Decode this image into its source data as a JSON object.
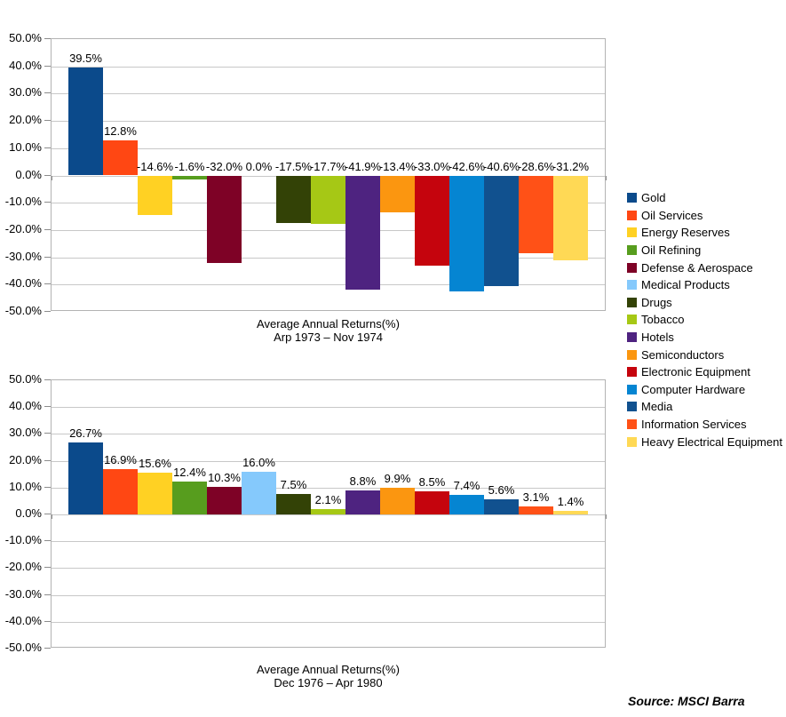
{
  "page": {
    "background": "#FFFFFF"
  },
  "legend": {
    "position": "right",
    "items": [
      {
        "label": "Gold",
        "color": "#0B4A8B"
      },
      {
        "label": "Oil Services",
        "color": "#FF4713"
      },
      {
        "label": "Energy Reserves",
        "color": "#FFD123"
      },
      {
        "label": "Oil Refining",
        "color": "#579D1E"
      },
      {
        "label": "Defense & Aerospace",
        "color": "#7E0226"
      },
      {
        "label": "Medical Products",
        "color": "#85C9FC"
      },
      {
        "label": "Drugs",
        "color": "#334206"
      },
      {
        "label": "Tobacco",
        "color": "#A6C815"
      },
      {
        "label": "Hotels",
        "color": "#4E2380"
      },
      {
        "label": "Semiconductors",
        "color": "#FB9610"
      },
      {
        "label": "Electronic Equipment",
        "color": "#C5040D"
      },
      {
        "label": "Computer Hardware",
        "color": "#0585D2"
      },
      {
        "label": "Media",
        "color": "#11518F"
      },
      {
        "label": "Information Services",
        "color": "#FF5117"
      },
      {
        "label": "Heavy Electrical Equipment",
        "color": "#FFD955"
      }
    ]
  },
  "chart_data": [
    {
      "type": "bar",
      "title": "Average Annual Returns(%)",
      "subtitle": "Arp 1973 – Nov 1974",
      "categories": [
        "Gold",
        "Oil Services",
        "Energy Reserves",
        "Oil Refining",
        "Defense & Aerospace",
        "Medical Products",
        "Drugs",
        "Tobacco",
        "Hotels",
        "Semiconductors",
        "Electronic Equipment",
        "Computer Hardware",
        "Media",
        "Information Services",
        "Heavy Electrical Equipment"
      ],
      "values": [
        39.5,
        12.8,
        -14.6,
        -1.6,
        -32.0,
        0.0,
        -17.5,
        -17.7,
        -41.9,
        -13.4,
        -33.0,
        -42.6,
        -40.6,
        -28.6,
        -31.2
      ],
      "value_labels": [
        "39.5%",
        "12.8%",
        "-14.6%",
        "-1.6%",
        "-32.0%",
        "0.0%",
        "-17.5%",
        "-17.7%",
        "-41.9%",
        "-13.4%",
        "-33.0%",
        "-42.6%",
        "-40.6%",
        "-28.6%",
        "-31.2%"
      ],
      "ylim": [
        -50,
        50
      ],
      "ytick_labels": [
        "50.0%",
        "40.0%",
        "30.0%",
        "20.0%",
        "10.0%",
        "0.0%",
        "-10.0%",
        "-20.0%",
        "-30.0%",
        "-40.0%",
        "-50.0%"
      ],
      "grid": true,
      "legend_position": "right"
    },
    {
      "type": "bar",
      "title": "Average Annual Returns(%)",
      "subtitle": "Dec 1976 – Apr 1980",
      "categories": [
        "Gold",
        "Oil Services",
        "Energy Reserves",
        "Oil Refining",
        "Defense & Aerospace",
        "Medical Products",
        "Drugs",
        "Tobacco",
        "Hotels",
        "Semiconductors",
        "Electronic Equipment",
        "Computer Hardware",
        "Media",
        "Information Services",
        "Heavy Electrical Equipment"
      ],
      "values": [
        26.7,
        16.9,
        15.6,
        12.4,
        10.3,
        16.0,
        7.5,
        2.1,
        8.8,
        9.9,
        8.5,
        7.4,
        5.6,
        3.1,
        1.4
      ],
      "value_labels": [
        "26.7%",
        "16.9%",
        "15.6%",
        "12.4%",
        "10.3%",
        "16.0%",
        "7.5%",
        "2.1%",
        "8.8%",
        "9.9%",
        "8.5%",
        "7.4%",
        "5.6%",
        "3.1%",
        "1.4%"
      ],
      "ylim": [
        -50,
        50
      ],
      "ytick_labels": [
        "50.0%",
        "40.0%",
        "30.0%",
        "20.0%",
        "10.0%",
        "0.0%",
        "-10.0%",
        "-20.0%",
        "-30.0%",
        "-40.0%",
        "-50.0%"
      ],
      "grid": true,
      "legend_position": "right"
    }
  ],
  "source_note": {
    "text": "Source: MSCI Barra"
  }
}
